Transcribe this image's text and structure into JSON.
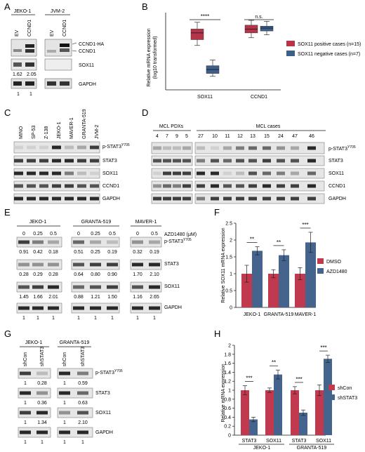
{
  "panels": {
    "A": {
      "letter": "A",
      "groups": [
        "JEKO-1",
        "JVM-2"
      ],
      "lanes": [
        "EV",
        "CCND1",
        "EV",
        "CCND1"
      ],
      "bands": [
        "CCND1-HA",
        "CCND1",
        "SOX11",
        "GAPDH"
      ],
      "quant_sox11": [
        "1.62",
        "2.05"
      ],
      "quant_gapdh": [
        "1",
        "1"
      ]
    },
    "B": {
      "letter": "B",
      "ylabel_line1": "Relative mRNA expression",
      "ylabel_line2": "(log10 transformed)",
      "legend": [
        "SOX11 positive cases (n=15)",
        "SOX11 negative cases (n=7)"
      ],
      "sig": [
        "****",
        "n.s."
      ]
    },
    "C": {
      "letter": "C",
      "lanes": [
        "MINO",
        "SP-53",
        "Z-138",
        "JEKO-1",
        "MAVER-1",
        "GRANTA-519",
        "JVM-2"
      ],
      "bands": [
        "p-STAT3",
        "STAT3",
        "SOX11",
        "CCND1",
        "GAPDH"
      ],
      "sup": "Y705"
    },
    "D": {
      "letter": "D",
      "groups": [
        "MCL PDXs",
        "MCL cases"
      ],
      "lanes_pdx": [
        "4",
        "7",
        "9",
        "5"
      ],
      "lanes_cases": [
        "27",
        "10",
        "11",
        "12",
        "13",
        "15",
        "24",
        "47",
        "46"
      ],
      "bands": [
        "p-STAT3",
        "STAT3",
        "SOX11",
        "CCND1",
        "GAPDH"
      ],
      "sup": "Y705"
    },
    "E": {
      "letter": "E",
      "groups": [
        "JEKO-1",
        "GRANTA-519",
        "MAVER-1"
      ],
      "doses": [
        "0",
        "0.25",
        "0.5",
        "0",
        "0.25",
        "0.5",
        "0",
        "0.5"
      ],
      "treatment": "AZD1480 (μM)",
      "bands": [
        "p-STAT3",
        "STAT3",
        "SOX11",
        "GAPDH"
      ],
      "sup": "Y705",
      "q_pstat3": [
        "0.91",
        "0.42",
        "0.18",
        "0.51",
        "0.25",
        "0.19",
        "0.32",
        "0.19"
      ],
      "q_stat3": [
        "0.28",
        "0.29",
        "0.28",
        "0.64",
        "0.80",
        "0.90",
        "1.70",
        "2.10"
      ],
      "q_sox11": [
        "1.45",
        "1.66",
        "2.01",
        "0.88",
        "1.21",
        "1.50",
        "1.16",
        "2.65"
      ],
      "q_gapdh": [
        "1",
        "1",
        "1",
        "1",
        "1",
        "1",
        "1",
        "1"
      ]
    },
    "F": {
      "letter": "F",
      "sig": [
        "**",
        "**",
        "***"
      ]
    },
    "G": {
      "letter": "G",
      "groups": [
        "JEKO-1",
        "GRANTA-519"
      ],
      "lanes": [
        "shCon",
        "shSTAT3",
        "shCon",
        "shSTAT3"
      ],
      "bands": [
        "p-STAT3",
        "STAT3",
        "SOX11",
        "GAPDH"
      ],
      "sup": "Y705",
      "q_pstat3": [
        "1",
        "0.28",
        "1",
        "0.59"
      ],
      "q_stat3": [
        "1",
        "0.36",
        "1",
        "0.63"
      ],
      "q_sox11": [
        "1",
        "1.34",
        "1",
        "2.10"
      ],
      "q_gapdh": [
        "1",
        "1",
        "1",
        "1"
      ]
    },
    "H": {
      "letter": "H",
      "sig": [
        "***",
        "**",
        "***",
        "***"
      ],
      "groups": [
        "JEKO-1",
        "GRANTA-519"
      ]
    }
  },
  "chart_data": [
    {
      "type": "box",
      "panel": "B",
      "title": "",
      "xlabel": "",
      "ylabel": "Relative mRNA expression (log10 transformed)",
      "categories": [
        "SOX11",
        "CCND1"
      ],
      "ylim": [
        0,
        4
      ],
      "series": [
        {
          "name": "SOX11 positive cases (n=15)",
          "color": "#b5344a",
          "boxes": [
            {
              "min": 2.3,
              "q1": 2.6,
              "median": 2.95,
              "q3": 3.15,
              "max": 3.5
            },
            {
              "min": 2.7,
              "q1": 2.95,
              "median": 3.15,
              "q3": 3.35,
              "max": 3.6
            }
          ]
        },
        {
          "name": "SOX11 negative cases (n=7)",
          "color": "#3d5f8a",
          "boxes": [
            {
              "min": 0.7,
              "q1": 0.85,
              "median": 1.05,
              "q3": 1.25,
              "max": 1.55
            },
            {
              "min": 2.85,
              "q1": 3.05,
              "median": 3.2,
              "q3": 3.3,
              "max": 3.55
            }
          ]
        }
      ]
    },
    {
      "type": "bar",
      "panel": "F",
      "title": "",
      "xlabel": "",
      "ylabel": "Relative SOX11 mRNA expression",
      "categories": [
        "JEKO-1",
        "GRANTA-519",
        "MAVER-1"
      ],
      "ylim": [
        0,
        2.5
      ],
      "yticks": [
        0,
        0.5,
        1,
        1.5,
        2,
        2.5
      ],
      "series": [
        {
          "name": "DMSO",
          "color": "#c0394f",
          "values": [
            1.0,
            1.0,
            1.0
          ],
          "err": [
            0.25,
            0.12,
            0.18
          ]
        },
        {
          "name": "AZD1480",
          "color": "#44648d",
          "values": [
            1.68,
            1.55,
            1.93
          ],
          "err": [
            0.12,
            0.16,
            0.3
          ]
        }
      ]
    },
    {
      "type": "bar",
      "panel": "H",
      "title": "",
      "xlabel": "",
      "ylabel": "Relative mRNA expression",
      "categories": [
        "STAT3",
        "SOX11",
        "STAT3",
        "SOX11"
      ],
      "ylim": [
        0,
        2
      ],
      "yticks": [
        "0",
        "0.2",
        "0.4",
        "0.6",
        "0.8",
        "1",
        "1.2",
        "1.4",
        "1.6",
        "1.8",
        "2"
      ],
      "series": [
        {
          "name": "shCon",
          "color": "#c0394f",
          "values": [
            1.0,
            1.0,
            1.0,
            1.0
          ],
          "err": [
            0.1,
            0.05,
            0.08,
            0.12
          ]
        },
        {
          "name": "shSTAT3",
          "color": "#44648d",
          "values": [
            0.35,
            1.35,
            0.5,
            1.7
          ],
          "err": [
            0.05,
            0.1,
            0.06,
            0.08
          ]
        }
      ]
    }
  ]
}
